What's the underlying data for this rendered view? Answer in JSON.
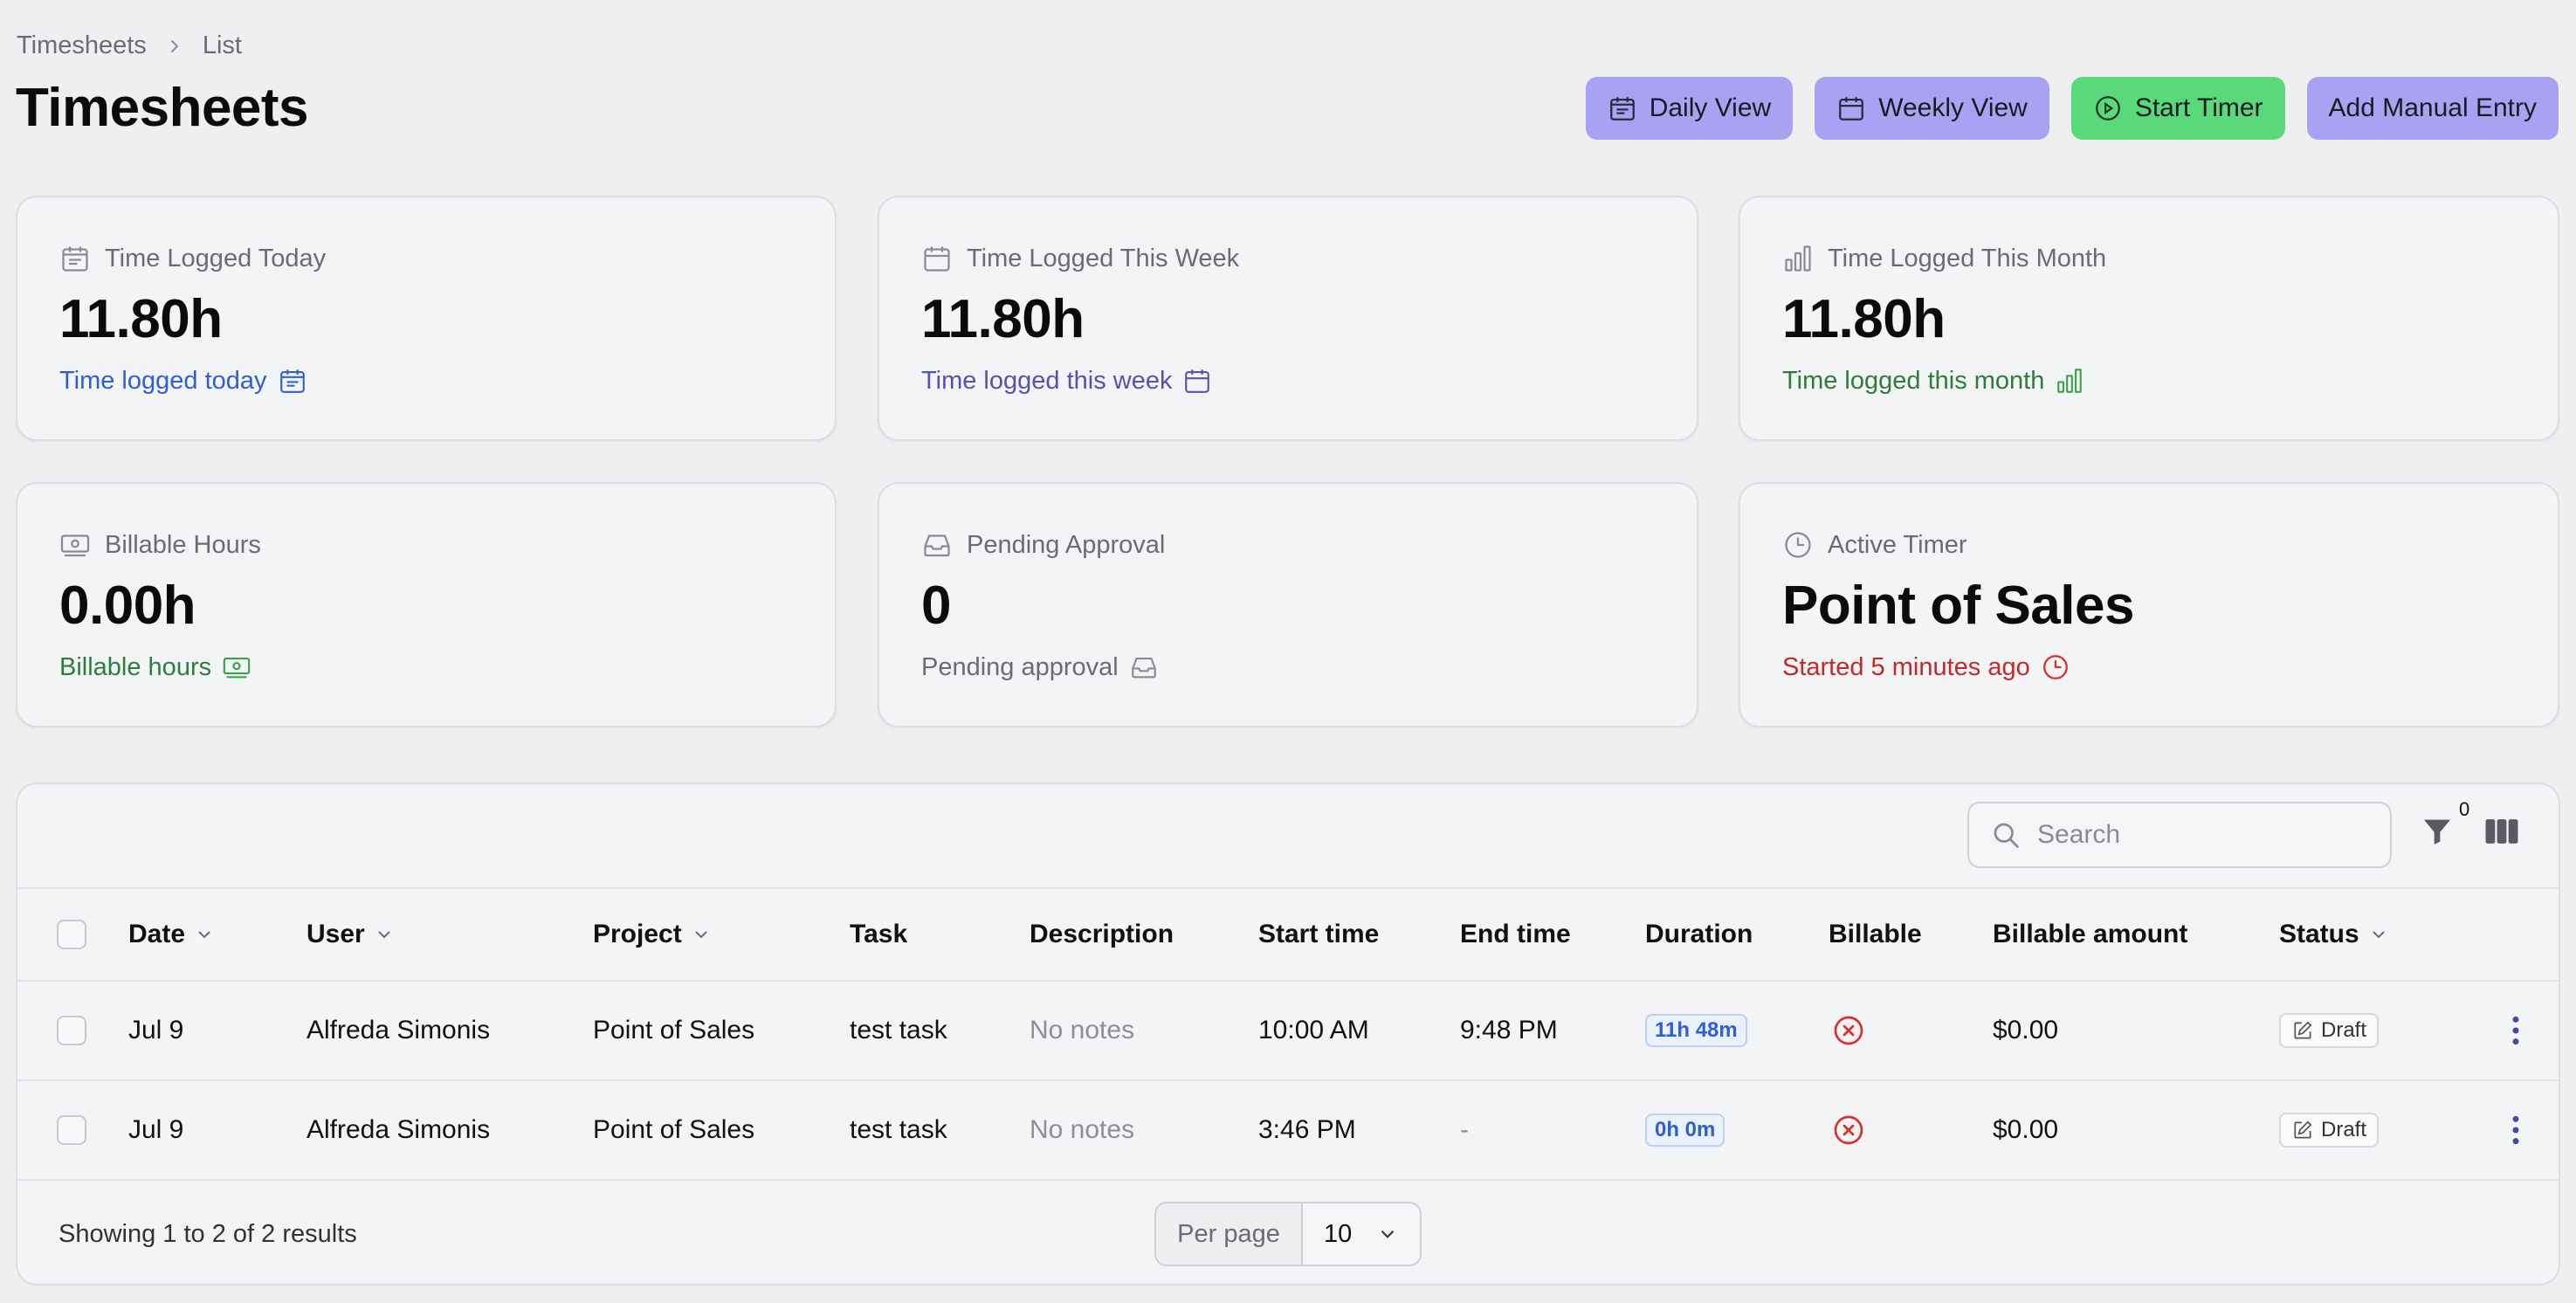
{
  "breadcrumb": {
    "items": [
      "Timesheets",
      "List"
    ]
  },
  "page_title": "Timesheets",
  "actions": {
    "daily_view": "Daily View",
    "weekly_view": "Weekly View",
    "start_timer": "Start Timer",
    "add_manual_entry": "Add Manual Entry"
  },
  "stats": [
    {
      "label": "Time Logged Today",
      "value": "11.80h",
      "sub": "Time logged today",
      "sub_color": "#2f5fd0",
      "icon": "calendar-days-icon"
    },
    {
      "label": "Time Logged This Week",
      "value": "11.80h",
      "sub": "Time logged this week",
      "sub_color": "#5b4fb0",
      "icon": "calendar-icon"
    },
    {
      "label": "Time Logged This Month",
      "value": "11.80h",
      "sub": "Time logged this month",
      "sub_color": "#2e7d3a",
      "icon": "bar-chart-icon"
    },
    {
      "label": "Billable Hours",
      "value": "0.00h",
      "sub": "Billable hours",
      "sub_color": "#2e7d3a",
      "icon": "banknotes-icon"
    },
    {
      "label": "Pending Approval",
      "value": "0",
      "sub": "Pending approval",
      "sub_color": "#6b6b72",
      "icon": "inbox-icon"
    },
    {
      "label": "Active Timer",
      "value": "Point of Sales",
      "sub": "Started 5 minutes ago",
      "sub_color": "#c62828",
      "icon": "clock-icon"
    }
  ],
  "table": {
    "search_placeholder": "Search",
    "filter_count": "0",
    "columns": [
      "Date",
      "User",
      "Project",
      "Task",
      "Description",
      "Start time",
      "End time",
      "Duration",
      "Billable",
      "Billable amount",
      "Status"
    ],
    "rows": [
      {
        "date": "Jul 9",
        "user": "Alfreda Simonis",
        "project": "Point of Sales",
        "task": "test task",
        "description": "No notes",
        "start": "10:00 AM",
        "end": "9:48 PM",
        "duration": "11h 48m",
        "amount": "$0.00",
        "status": "Draft"
      },
      {
        "date": "Jul 9",
        "user": "Alfreda Simonis",
        "project": "Point of Sales",
        "task": "test task",
        "description": "No notes",
        "start": "3:46 PM",
        "end": "-",
        "duration": "0h 0m",
        "amount": "$0.00",
        "status": "Draft"
      }
    ],
    "results_text": "Showing 1 to 2 of 2 results",
    "per_page_label": "Per page",
    "per_page_value": "10"
  }
}
